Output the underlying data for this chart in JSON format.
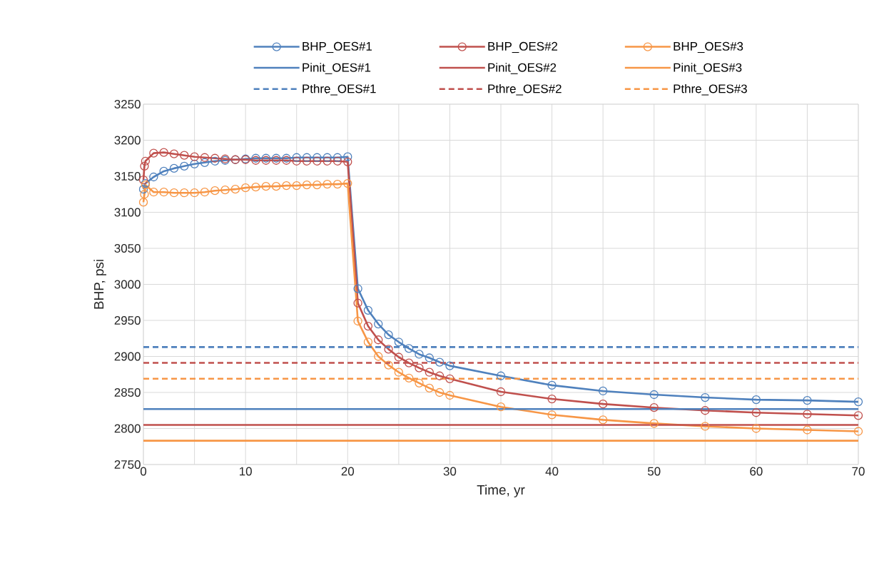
{
  "chart_data": {
    "type": "line",
    "xlabel": "Time, yr",
    "ylabel": "BHP, psi",
    "xlim": [
      0,
      70
    ],
    "ylim": [
      2750,
      3250
    ],
    "xticks": [
      0,
      {
        "value": 5,
        "label": null
      },
      10,
      {
        "value": 15,
        "label": null
      },
      20,
      {
        "value": 25,
        "label": null
      },
      30,
      {
        "value": 35,
        "label": null
      },
      40,
      {
        "value": 45,
        "label": null
      },
      50,
      {
        "value": 55,
        "label": null
      },
      60,
      {
        "value": 65,
        "label": null
      },
      70
    ],
    "yticks": [
      2750,
      2800,
      2850,
      2900,
      2950,
      3000,
      3050,
      3100,
      3150,
      3200,
      3250
    ],
    "grid": true,
    "legend": "top",
    "marker": "circle",
    "line_style": "solid",
    "series": [
      {
        "name": "BHP_OES#1",
        "color": "#4f81bd",
        "x": [
          0,
          0.2,
          1,
          2,
          3,
          4,
          5,
          6,
          7,
          8,
          9,
          10,
          11,
          12,
          13,
          14,
          15,
          16,
          17,
          18,
          19,
          20,
          21,
          22,
          23,
          24,
          25,
          26,
          27,
          28,
          29,
          30,
          35,
          40,
          45,
          50,
          55,
          60,
          65,
          70
        ],
        "values": [
          3132,
          3140,
          3149,
          3157,
          3161,
          3164,
          3167,
          3169,
          3171,
          3172,
          3173,
          3174,
          3175,
          3175,
          3175,
          3175,
          3176,
          3176,
          3176,
          3176,
          3176,
          3177,
          2994,
          2964,
          2945,
          2930,
          2920,
          2911,
          2903,
          2898,
          2892,
          2887,
          2873,
          2860,
          2852,
          2847,
          2843,
          2840,
          2839,
          2837
        ]
      },
      {
        "name": "BHP_OES#2",
        "color": "#c0504d",
        "x": [
          0,
          0.1,
          0.2,
          1,
          2,
          3,
          4,
          5,
          6,
          7,
          8,
          9,
          10,
          11,
          12,
          13,
          14,
          15,
          16,
          17,
          18,
          19,
          20,
          21,
          22,
          23,
          24,
          25,
          26,
          27,
          28,
          29,
          30,
          35,
          40,
          45,
          50,
          55,
          60,
          65,
          70
        ],
        "values": [
          3145,
          3164,
          3171,
          3182,
          3183,
          3181,
          3179,
          3177,
          3176,
          3175,
          3174,
          3173,
          3173,
          3172,
          3172,
          3172,
          3172,
          3171,
          3171,
          3171,
          3171,
          3171,
          3170,
          2974,
          2942,
          2923,
          2910,
          2899,
          2891,
          2884,
          2878,
          2873,
          2869,
          2851,
          2841,
          2834,
          2829,
          2825,
          2822,
          2820,
          2818
        ]
      },
      {
        "name": "BHP_OES#3",
        "color": "#f79646",
        "x": [
          0,
          0.1,
          0.2,
          1,
          2,
          3,
          4,
          5,
          6,
          7,
          8,
          9,
          10,
          11,
          12,
          13,
          14,
          15,
          16,
          17,
          18,
          19,
          20,
          21,
          22,
          23,
          24,
          25,
          26,
          27,
          28,
          29,
          30,
          35,
          40,
          45,
          50,
          55,
          60,
          65,
          70
        ],
        "values": [
          3114,
          3125,
          3138,
          3128,
          3128,
          3127,
          3127,
          3127,
          3128,
          3130,
          3131,
          3132,
          3134,
          3135,
          3136,
          3136,
          3137,
          3137,
          3138,
          3138,
          3139,
          3139,
          3140,
          2949,
          2920,
          2900,
          2888,
          2878,
          2870,
          2863,
          2856,
          2850,
          2846,
          2830,
          2819,
          2812,
          2807,
          2803,
          2800,
          2798,
          2796
        ]
      },
      {
        "name": "Pinit_OES#1",
        "color": "#4f81bd",
        "marker": "none",
        "x": [
          0,
          70
        ],
        "values": [
          2827,
          2827
        ]
      },
      {
        "name": "Pinit_OES#2",
        "color": "#c0504d",
        "marker": "none",
        "x": [
          0,
          70
        ],
        "values": [
          2805,
          2805
        ]
      },
      {
        "name": "Pinit_OES#3",
        "color": "#f79646",
        "marker": "none",
        "x": [
          0,
          70
        ],
        "values": [
          2783,
          2783
        ]
      },
      {
        "name": "Pthre_OES#1",
        "color": "#4f81bd",
        "marker": "none",
        "line_style": "dashed",
        "x": [
          0,
          70
        ],
        "values": [
          2913,
          2913
        ]
      },
      {
        "name": "Pthre_OES#2",
        "color": "#c0504d",
        "marker": "none",
        "line_style": "dashed",
        "x": [
          0,
          70
        ],
        "values": [
          2891,
          2891
        ]
      },
      {
        "name": "Pthre_OES#3",
        "color": "#f79646",
        "marker": "none",
        "line_style": "dashed",
        "x": [
          0,
          70
        ],
        "values": [
          2869,
          2869
        ]
      }
    ]
  }
}
